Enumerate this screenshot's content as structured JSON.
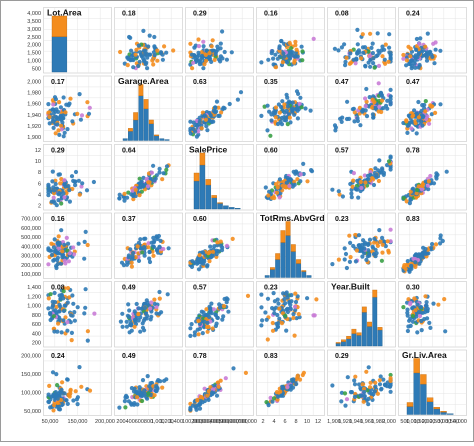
{
  "chart_data": {
    "type": "scatter",
    "variables": [
      "Lot.Area",
      "Garage.Area",
      "SalePrice",
      "TotRms.AbvGrd",
      "Year.Built",
      "Gr.Liv.Area"
    ],
    "correlations": [
      [
        "",
        "0.18",
        "0.29",
        "0.16",
        "0.08",
        "0.24"
      ],
      [
        "0.17",
        "",
        "0.63",
        "0.35",
        "0.47",
        "0.47"
      ],
      [
        "0.29",
        "0.64",
        "",
        "0.60",
        "0.57",
        "0.78"
      ],
      [
        "0.16",
        "0.37",
        "0.60",
        "",
        "0.23",
        "0.83"
      ],
      [
        "0.08",
        "0.49",
        "0.57",
        "0.23",
        "",
        "0.30"
      ],
      [
        "0.24",
        "0.49",
        "0.78",
        "0.83",
        "0.29",
        ""
      ]
    ],
    "y_tick_labels": [
      [
        "500",
        "1,000",
        "1,500",
        "2,000",
        "2,500",
        "3,000",
        "3,500",
        "4,000"
      ],
      [
        "1,900",
        "1,920",
        "1,940",
        "1,960",
        "1,980",
        "2,000"
      ],
      [
        "2",
        "4",
        "6",
        "8",
        "10",
        "12"
      ],
      [
        "100,000",
        "200,000",
        "300,000",
        "400,000",
        "500,000",
        "600,000",
        "700,000"
      ],
      [
        "200",
        "400",
        "600",
        "800",
        "1,000",
        "1,200",
        "1,400"
      ],
      [
        "50,000",
        "100,000",
        "150,000",
        "200,000"
      ]
    ],
    "x_tick_labels": [
      [
        "50,000",
        "150,000",
        "200,000"
      ],
      [
        "200",
        "400",
        "600",
        "800",
        "1,000",
        "1,200",
        "1,400"
      ],
      [
        "100,000",
        "200,000",
        "300,000",
        "400,000",
        "500,000",
        "600,000",
        "700,000"
      ],
      [
        "2",
        "4",
        "6",
        "8",
        "10",
        "12"
      ],
      [
        "1,900",
        "1,920",
        "1,940",
        "1,960",
        "1,980",
        "2,000"
      ],
      [
        "500",
        "1,000",
        "1,500",
        "2,000",
        "2,500",
        "3,000",
        "3,500",
        "4,000"
      ]
    ],
    "grid": true,
    "legend": "none",
    "colors": {
      "primary": "#2e7ab6",
      "secondary": "#f48d1e",
      "tertiary": "#c97cd6",
      "quaternary": "#3aa046",
      "grid": "#e4e4e4",
      "panel_border": "#c8c8c8"
    },
    "histograms": [
      {
        "variable": "Lot.Area",
        "bins": [
          {
            "primary": 60,
            "secondary": 35
          },
          {
            "primary": 0,
            "secondary": 0
          },
          {
            "primary": 0,
            "secondary": 0
          }
        ]
      },
      {
        "variable": "Garage.Area",
        "bins": [
          {
            "primary": 2,
            "secondary": 0
          },
          {
            "primary": 10,
            "secondary": 3
          },
          {
            "primary": 22,
            "secondary": 8
          },
          {
            "primary": 48,
            "secondary": 12
          },
          {
            "primary": 34,
            "secondary": 10
          },
          {
            "primary": 18,
            "secondary": 4
          },
          {
            "primary": 5,
            "secondary": 1
          },
          {
            "primary": 2,
            "secondary": 0
          },
          {
            "primary": 1,
            "secondary": 0
          }
        ]
      },
      {
        "variable": "SalePrice",
        "bins": [
          {
            "primary": 35,
            "secondary": 10
          },
          {
            "primary": 55,
            "secondary": 15
          },
          {
            "primary": 30,
            "secondary": 7
          },
          {
            "primary": 14,
            "secondary": 3
          },
          {
            "primary": 7,
            "secondary": 1
          },
          {
            "primary": 4,
            "secondary": 0
          },
          {
            "primary": 2,
            "secondary": 0
          },
          {
            "primary": 1,
            "secondary": 0
          }
        ]
      },
      {
        "variable": "TotRms.AbvGrd",
        "bins": [
          {
            "primary": 2,
            "secondary": 0
          },
          {
            "primary": 8,
            "secondary": 2
          },
          {
            "primary": 18,
            "secondary": 6
          },
          {
            "primary": 35,
            "secondary": 12
          },
          {
            "primary": 42,
            "secondary": 14
          },
          {
            "primary": 26,
            "secondary": 7
          },
          {
            "primary": 14,
            "secondary": 4
          },
          {
            "primary": 6,
            "secondary": 1
          },
          {
            "primary": 2,
            "secondary": 0
          }
        ]
      },
      {
        "variable": "Year.Built",
        "bins": [
          {
            "primary": 3,
            "secondary": 1
          },
          {
            "primary": 5,
            "secondary": 2
          },
          {
            "primary": 8,
            "secondary": 3
          },
          {
            "primary": 14,
            "secondary": 5
          },
          {
            "primary": 12,
            "secondary": 3
          },
          {
            "primary": 38,
            "secondary": 6
          },
          {
            "primary": 22,
            "secondary": 5
          },
          {
            "primary": 55,
            "secondary": 8
          },
          {
            "primary": 18,
            "secondary": 3
          }
        ]
      },
      {
        "variable": "Gr.Liv.Area",
        "bins": [
          {
            "primary": 10,
            "secondary": 5
          },
          {
            "primary": 52,
            "secondary": 18
          },
          {
            "primary": 38,
            "secondary": 12
          },
          {
            "primary": 16,
            "secondary": 5
          },
          {
            "primary": 7,
            "secondary": 2
          },
          {
            "primary": 3,
            "secondary": 1
          },
          {
            "primary": 1,
            "secondary": 0
          }
        ]
      }
    ]
  }
}
